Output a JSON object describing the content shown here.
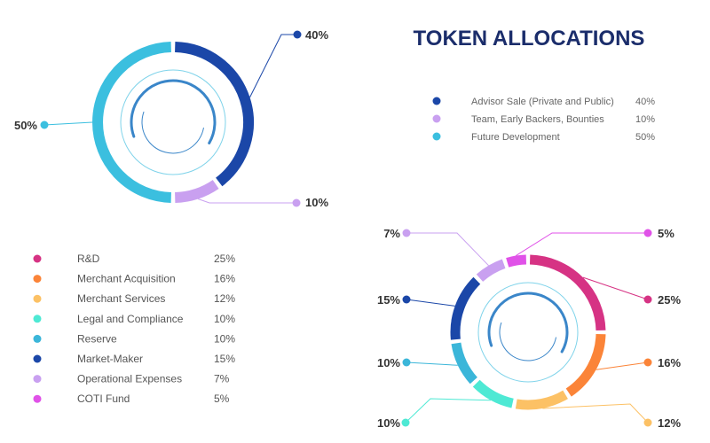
{
  "title": "TOKEN ALLOCATIONS",
  "colors": {
    "title": "#1b2d6b",
    "advisor": "#1b47a8",
    "team": "#c9a0f0",
    "future": "#3bbfdf",
    "rnd": "#d63384",
    "merchant_acq": "#fb8438",
    "merchant_srv": "#fcc165",
    "legal": "#4ee9d4",
    "reserve": "#3bb6d9",
    "market_maker": "#1b47a8",
    "operational": "#c9a0f0",
    "coti": "#e052e8"
  },
  "chart_data": [
    {
      "type": "pie",
      "title": "TOKEN ALLOCATIONS",
      "categories": [
        "Advisor Sale (Private and Public)",
        "Team, Early Backers, Bounties",
        "Future Development"
      ],
      "values": [
        40,
        10,
        50
      ],
      "value_labels": [
        "40%",
        "10%",
        "50%"
      ],
      "colors": [
        "#1b47a8",
        "#c9a0f0",
        "#3bbfdf"
      ],
      "legend": "top-right"
    },
    {
      "type": "pie",
      "categories": [
        "R&D",
        "Merchant Acquisition",
        "Merchant Services",
        "Legal and Compliance",
        "Reserve",
        "Market-Maker",
        "Operational Expenses",
        "COTI Fund"
      ],
      "values": [
        25,
        16,
        12,
        10,
        10,
        15,
        7,
        5
      ],
      "value_labels": [
        "25%",
        "16%",
        "12%",
        "10%",
        "10%",
        "15%",
        "7%",
        "5%"
      ],
      "colors": [
        "#d63384",
        "#fb8438",
        "#fcc165",
        "#4ee9d4",
        "#3bb6d9",
        "#1b47a8",
        "#c9a0f0",
        "#e052e8"
      ],
      "legend": "bottom-left"
    }
  ]
}
